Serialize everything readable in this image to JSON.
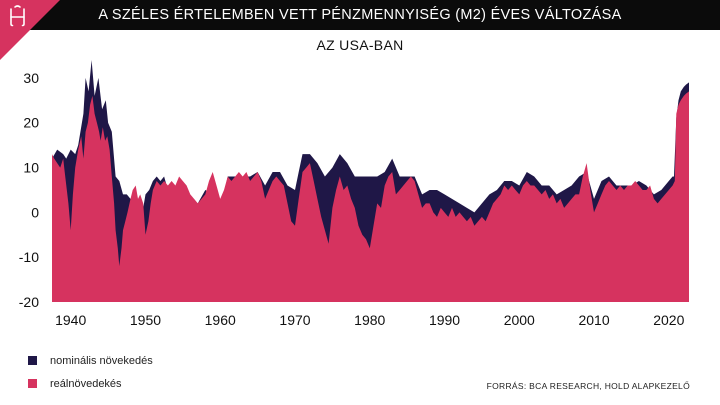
{
  "header": {
    "title": "A SZÉLES ÉRTELEMBEN VETT PÉNZMENNYISÉG (M2) ÉVES VÁLTOZÁSA",
    "subtitle": "AZ USA-BAN"
  },
  "colors": {
    "header_bg": "#0b0b0b",
    "logo_accent": "#d6335f",
    "nominal": "#1f1747",
    "real": "#d6335f"
  },
  "icons": {
    "logo": "hold-logo-icon"
  },
  "source": "FORRÁS: BCA RESEARCH, HOLD ALAPKEZELŐ",
  "chart_data": {
    "type": "area",
    "title": "A SZÉLES ÉRTELEMBEN VETT PÉNZMENNYISÉG (M2) ÉVES VÁLTOZÁSA",
    "subtitle": "AZ USA-BAN",
    "xlim": [
      1937.5,
      2022.7
    ],
    "ylim": [
      -20,
      34
    ],
    "x_ticks": [
      "1940",
      "1950",
      "1960",
      "1970",
      "1980",
      "1990",
      "2000",
      "2010",
      "2020"
    ],
    "y_ticks": [
      "30",
      "20",
      "10",
      "0",
      "-10",
      "-20"
    ],
    "legend_position": "bottom-left",
    "grid": false,
    "series": [
      {
        "name": "nominális növekedés",
        "color": "#1f1747",
        "points": [
          [
            1937.5,
            12
          ],
          [
            1938.2,
            14
          ],
          [
            1939,
            13
          ],
          [
            1939.4,
            12
          ],
          [
            1940,
            14
          ],
          [
            1940.6,
            13
          ],
          [
            1941,
            15
          ],
          [
            1941.7,
            22
          ],
          [
            1942,
            30
          ],
          [
            1942.4,
            27
          ],
          [
            1942.8,
            34
          ],
          [
            1943.2,
            26
          ],
          [
            1943.7,
            30
          ],
          [
            1944.2,
            23
          ],
          [
            1944.7,
            25
          ],
          [
            1945,
            20
          ],
          [
            1945.5,
            18
          ],
          [
            1946,
            8
          ],
          [
            1946.5,
            7
          ],
          [
            1947,
            4
          ],
          [
            1947.5,
            4
          ],
          [
            1948,
            3
          ],
          [
            1948.5,
            2
          ],
          [
            1949,
            0
          ],
          [
            1949.5,
            -1
          ],
          [
            1950,
            4
          ],
          [
            1950.5,
            5
          ],
          [
            1951,
            7
          ],
          [
            1951.5,
            8
          ],
          [
            1952,
            7
          ],
          [
            1952.5,
            8
          ],
          [
            1953,
            5
          ],
          [
            1954,
            4
          ],
          [
            1955,
            6
          ],
          [
            1956,
            3
          ],
          [
            1957,
            2
          ],
          [
            1958,
            5
          ],
          [
            1959,
            4
          ],
          [
            1960,
            2
          ],
          [
            1960.5,
            4
          ],
          [
            1961,
            8
          ],
          [
            1962,
            8
          ],
          [
            1963,
            8
          ],
          [
            1964,
            8
          ],
          [
            1965,
            9
          ],
          [
            1966,
            6
          ],
          [
            1967,
            9
          ],
          [
            1968,
            9
          ],
          [
            1969,
            6
          ],
          [
            1970,
            5
          ],
          [
            1970.5,
            9
          ],
          [
            1971,
            13
          ],
          [
            1971.5,
            13
          ],
          [
            1972,
            13
          ],
          [
            1973,
            11
          ],
          [
            1974,
            8
          ],
          [
            1975,
            10
          ],
          [
            1976,
            13
          ],
          [
            1977,
            11
          ],
          [
            1978,
            8
          ],
          [
            1979,
            8
          ],
          [
            1980,
            8
          ],
          [
            1981,
            8
          ],
          [
            1982,
            9
          ],
          [
            1983,
            12
          ],
          [
            1984,
            8
          ],
          [
            1985,
            8
          ],
          [
            1986,
            8
          ],
          [
            1987,
            4
          ],
          [
            1988,
            5
          ],
          [
            1989,
            5
          ],
          [
            1990,
            4
          ],
          [
            1991,
            3
          ],
          [
            1992,
            2
          ],
          [
            1993,
            1
          ],
          [
            1994,
            0
          ],
          [
            1995,
            2
          ],
          [
            1996,
            4
          ],
          [
            1997,
            5
          ],
          [
            1998,
            7
          ],
          [
            1999,
            7
          ],
          [
            2000,
            6
          ],
          [
            2001,
            9
          ],
          [
            2002,
            8
          ],
          [
            2003,
            6
          ],
          [
            2004,
            6
          ],
          [
            2005,
            4
          ],
          [
            2006,
            5
          ],
          [
            2007,
            6
          ],
          [
            2008,
            8
          ],
          [
            2009,
            9
          ],
          [
            2010,
            3
          ],
          [
            2011,
            7
          ],
          [
            2012,
            8
          ],
          [
            2013,
            6
          ],
          [
            2014,
            6
          ],
          [
            2015,
            6
          ],
          [
            2016,
            7
          ],
          [
            2017,
            6
          ],
          [
            2018,
            4
          ],
          [
            2019,
            5
          ],
          [
            2020,
            7
          ],
          [
            2020.5,
            8
          ],
          [
            2020.7,
            8
          ],
          [
            2021,
            21
          ],
          [
            2021.3,
            25
          ],
          [
            2021.6,
            27
          ],
          [
            2022,
            28
          ],
          [
            2022.3,
            28.5
          ],
          [
            2022.7,
            29
          ]
        ]
      },
      {
        "name": "reálnövedekés",
        "color": "#d6335f",
        "points": [
          [
            1937.5,
            13
          ],
          [
            1937.8,
            12
          ],
          [
            1938.2,
            11
          ],
          [
            1938.6,
            10
          ],
          [
            1939,
            12
          ],
          [
            1939.2,
            9
          ],
          [
            1939.7,
            2
          ],
          [
            1940,
            -4
          ],
          [
            1940.3,
            4
          ],
          [
            1940.6,
            10
          ],
          [
            1941,
            14
          ],
          [
            1941.4,
            17
          ],
          [
            1941.7,
            12
          ],
          [
            1942,
            18
          ],
          [
            1942.3,
            20
          ],
          [
            1942.6,
            24
          ],
          [
            1942.9,
            26
          ],
          [
            1943.2,
            22
          ],
          [
            1943.5,
            20
          ],
          [
            1943.8,
            18
          ],
          [
            1944,
            16
          ],
          [
            1944.3,
            19
          ],
          [
            1944.6,
            16
          ],
          [
            1944.9,
            17
          ],
          [
            1945.2,
            14
          ],
          [
            1945.5,
            8
          ],
          [
            1945.8,
            2
          ],
          [
            1946,
            -4
          ],
          [
            1946.3,
            -8
          ],
          [
            1946.5,
            -12
          ],
          [
            1946.8,
            -8
          ],
          [
            1947,
            -4
          ],
          [
            1947.3,
            -2
          ],
          [
            1947.6,
            0
          ],
          [
            1948,
            3
          ],
          [
            1948.3,
            5
          ],
          [
            1948.7,
            6
          ],
          [
            1949,
            3
          ],
          [
            1949.3,
            4
          ],
          [
            1949.7,
            2
          ],
          [
            1950,
            -5
          ],
          [
            1950.4,
            -2
          ],
          [
            1950.7,
            2
          ],
          [
            1951,
            5
          ],
          [
            1951.5,
            7
          ],
          [
            1952,
            6
          ],
          [
            1952.5,
            7
          ],
          [
            1953,
            6
          ],
          [
            1953.5,
            7
          ],
          [
            1954,
            6
          ],
          [
            1954.5,
            8
          ],
          [
            1955,
            7
          ],
          [
            1955.5,
            6
          ],
          [
            1956,
            4
          ],
          [
            1956.5,
            3
          ],
          [
            1957,
            2
          ],
          [
            1957.5,
            3
          ],
          [
            1958,
            4
          ],
          [
            1958.5,
            7
          ],
          [
            1959,
            9
          ],
          [
            1959.5,
            6
          ],
          [
            1960,
            3
          ],
          [
            1960.5,
            5
          ],
          [
            1961,
            8
          ],
          [
            1961.5,
            7
          ],
          [
            1962,
            8
          ],
          [
            1962.5,
            9
          ],
          [
            1963,
            8
          ],
          [
            1963.5,
            9
          ],
          [
            1964,
            7
          ],
          [
            1964.5,
            8
          ],
          [
            1965,
            9
          ],
          [
            1965.5,
            7
          ],
          [
            1966,
            3
          ],
          [
            1966.5,
            5
          ],
          [
            1967,
            7
          ],
          [
            1967.5,
            8
          ],
          [
            1968,
            7
          ],
          [
            1968.5,
            6
          ],
          [
            1969,
            2
          ],
          [
            1969.5,
            -2
          ],
          [
            1970,
            -3
          ],
          [
            1970.5,
            3
          ],
          [
            1971,
            9
          ],
          [
            1971.5,
            10
          ],
          [
            1972,
            11
          ],
          [
            1972.5,
            7
          ],
          [
            1973,
            3
          ],
          [
            1973.5,
            -1
          ],
          [
            1974,
            -4
          ],
          [
            1974.5,
            -7
          ],
          [
            1975,
            1
          ],
          [
            1975.5,
            5
          ],
          [
            1976,
            8
          ],
          [
            1976.5,
            5
          ],
          [
            1977,
            6
          ],
          [
            1977.5,
            3
          ],
          [
            1978,
            1
          ],
          [
            1978.5,
            -3
          ],
          [
            1979,
            -5
          ],
          [
            1979.5,
            -6
          ],
          [
            1980,
            -8
          ],
          [
            1980.5,
            -3
          ],
          [
            1981,
            2
          ],
          [
            1981.5,
            1
          ],
          [
            1982,
            6
          ],
          [
            1982.5,
            8
          ],
          [
            1983,
            9
          ],
          [
            1983.5,
            4
          ],
          [
            1984,
            5
          ],
          [
            1984.5,
            6
          ],
          [
            1985,
            7
          ],
          [
            1985.5,
            8
          ],
          [
            1986,
            7
          ],
          [
            1986.5,
            4
          ],
          [
            1987,
            1
          ],
          [
            1987.5,
            2
          ],
          [
            1988,
            2
          ],
          [
            1988.5,
            0
          ],
          [
            1989,
            -1
          ],
          [
            1989.5,
            1
          ],
          [
            1990,
            0
          ],
          [
            1990.5,
            -1
          ],
          [
            1991,
            1
          ],
          [
            1991.5,
            -1
          ],
          [
            1992,
            0
          ],
          [
            1992.5,
            -1
          ],
          [
            1993,
            -2
          ],
          [
            1993.5,
            -1
          ],
          [
            1994,
            -3
          ],
          [
            1994.5,
            -2
          ],
          [
            1995,
            -1
          ],
          [
            1995.5,
            -2
          ],
          [
            1996,
            0
          ],
          [
            1996.5,
            2
          ],
          [
            1997,
            3
          ],
          [
            1997.5,
            4
          ],
          [
            1998,
            6
          ],
          [
            1998.5,
            5
          ],
          [
            1999,
            6
          ],
          [
            1999.5,
            5
          ],
          [
            2000,
            4
          ],
          [
            2000.5,
            6
          ],
          [
            2001,
            7
          ],
          [
            2001.5,
            6
          ],
          [
            2002,
            6
          ],
          [
            2002.5,
            5
          ],
          [
            2003,
            4
          ],
          [
            2003.5,
            5
          ],
          [
            2004,
            3
          ],
          [
            2004.5,
            4
          ],
          [
            2005,
            2
          ],
          [
            2005.5,
            3
          ],
          [
            2006,
            1
          ],
          [
            2006.5,
            2
          ],
          [
            2007,
            3
          ],
          [
            2007.5,
            4
          ],
          [
            2008,
            4
          ],
          [
            2008.5,
            8
          ],
          [
            2009,
            11
          ],
          [
            2009.5,
            5
          ],
          [
            2010,
            0
          ],
          [
            2010.5,
            2
          ],
          [
            2011,
            4
          ],
          [
            2011.5,
            6
          ],
          [
            2012,
            7
          ],
          [
            2012.5,
            6
          ],
          [
            2013,
            5
          ],
          [
            2013.5,
            6
          ],
          [
            2014,
            5
          ],
          [
            2014.5,
            6
          ],
          [
            2015,
            6
          ],
          [
            2015.5,
            7
          ],
          [
            2016,
            6
          ],
          [
            2016.5,
            5
          ],
          [
            2017,
            5
          ],
          [
            2017.5,
            6
          ],
          [
            2018,
            3
          ],
          [
            2018.5,
            2
          ],
          [
            2019,
            3
          ],
          [
            2019.5,
            4
          ],
          [
            2020,
            5
          ],
          [
            2020.5,
            6
          ],
          [
            2020.8,
            7
          ],
          [
            2021,
            22
          ],
          [
            2021.3,
            24
          ],
          [
            2021.6,
            25
          ],
          [
            2022,
            26
          ],
          [
            2022.3,
            26.5
          ],
          [
            2022.7,
            27
          ]
        ]
      }
    ]
  }
}
